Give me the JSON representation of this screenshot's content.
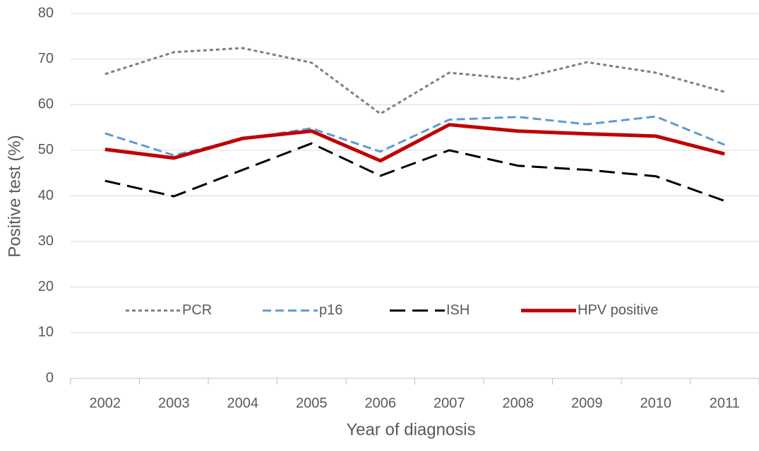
{
  "chart_data": {
    "type": "line",
    "xlabel": "Year of diagnosis",
    "ylabel": "Positive test (%)",
    "categories": [
      "2002",
      "2003",
      "2004",
      "2005",
      "2006",
      "2007",
      "2008",
      "2009",
      "2010",
      "2011"
    ],
    "series": [
      {
        "name": "PCR",
        "color": "#7f7f7f",
        "dash": "dot",
        "values": [
          66.7,
          71.5,
          72.4,
          69.2,
          58,
          67,
          65.6,
          69.3,
          67,
          62.8
        ]
      },
      {
        "name": "p16",
        "color": "#5b9bd5",
        "dash": "dash",
        "values": [
          53.7,
          48.9,
          52.5,
          54.8,
          49.7,
          56.7,
          57.3,
          55.7,
          57.4,
          51.2
        ]
      },
      {
        "name": "ISH",
        "color": "#000000",
        "dash": "longdash",
        "values": [
          43.3,
          39.9,
          45.7,
          51.5,
          44.4,
          50,
          46.6,
          45.7,
          44.3,
          38.9
        ]
      },
      {
        "name": "HPV positive",
        "color": "#c00000",
        "dash": "solid",
        "values": [
          50.2,
          48.3,
          52.6,
          54.2,
          47.7,
          55.6,
          54.2,
          53.6,
          53.1,
          49.2
        ]
      }
    ],
    "ylim": [
      0,
      80
    ],
    "yticks": [
      0,
      10,
      20,
      30,
      40,
      50,
      60,
      70,
      80
    ],
    "grid": true,
    "legend": "inside-bottom"
  }
}
